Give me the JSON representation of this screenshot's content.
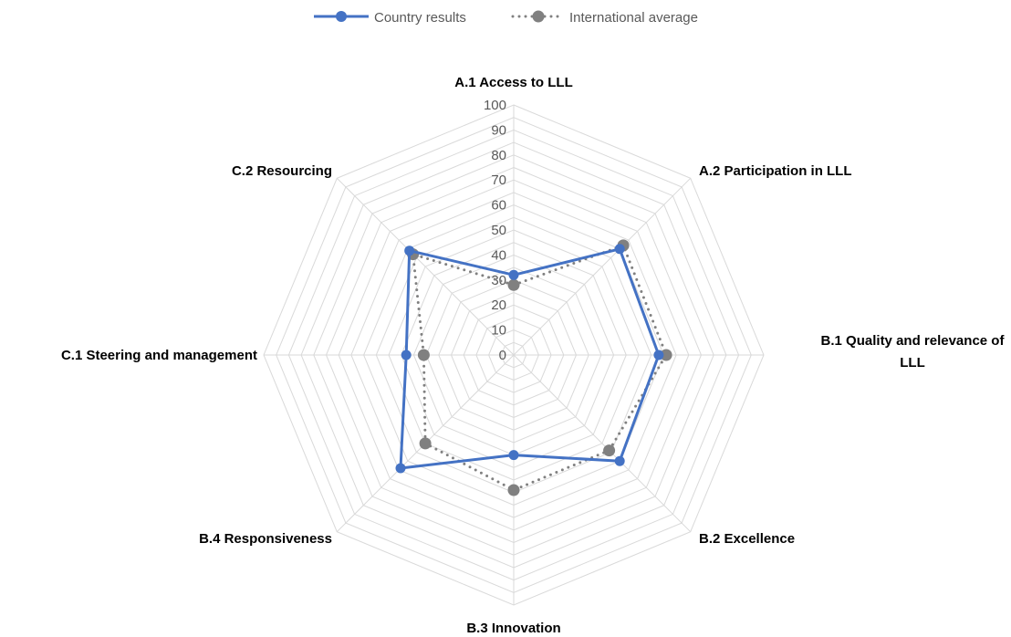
{
  "chart_data": {
    "type": "radar",
    "title": "",
    "categories": [
      "A.1 Access to LLL",
      "A.2 Participation in LLL",
      "B.1 Quality and relevance of LLL",
      "B.2 Excellence",
      "B.3 Innovation",
      "B.4  Responsiveness",
      "C.1 Steering and management",
      "C.2 Resourcing"
    ],
    "series": [
      {
        "name": "Country results",
        "values": [
          32,
          60,
          58,
          60,
          40,
          64,
          43,
          59
        ],
        "color": "#4472C4",
        "line_style": "solid"
      },
      {
        "name": "International average",
        "values": [
          28,
          62,
          61,
          54,
          54,
          50,
          36,
          57
        ],
        "color": "#808080",
        "line_style": "dotted"
      }
    ],
    "r_range": [
      0,
      100
    ],
    "r_ticks": [
      0,
      10,
      20,
      30,
      40,
      50,
      60,
      70,
      80,
      90,
      100
    ],
    "r_minor_step": 5,
    "grid": true,
    "legend_position": "top"
  }
}
